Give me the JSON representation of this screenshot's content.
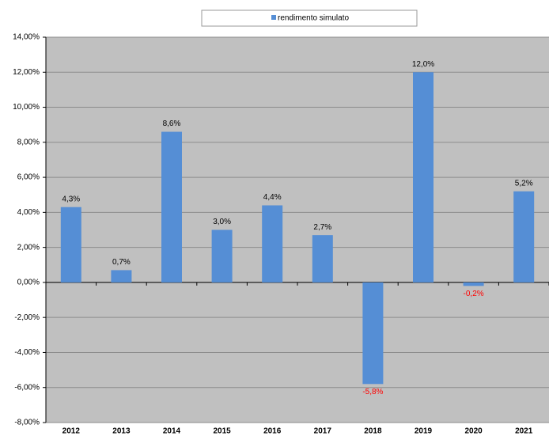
{
  "chart_data": {
    "type": "bar",
    "categories": [
      "2012",
      "2013",
      "2014",
      "2015",
      "2016",
      "2017",
      "2018",
      "2019",
      "2020",
      "2021"
    ],
    "series": [
      {
        "name": "rendimento simulato",
        "color": "#558ed5",
        "values": [
          4.3,
          0.7,
          8.6,
          3.0,
          4.4,
          2.7,
          -5.8,
          12.0,
          -0.2,
          5.2
        ],
        "value_labels": [
          "4,3%",
          "0,7%",
          "8,6%",
          "3,0%",
          "4,4%",
          "2,7%",
          "-5,8%",
          "12,0%",
          "-0,2%",
          "5,2%"
        ]
      }
    ],
    "ylim": [
      -8,
      14
    ],
    "yticks": [
      {
        "value": -8,
        "label": "-8,00%"
      },
      {
        "value": -6,
        "label": "-6,00%"
      },
      {
        "value": -4,
        "label": "-4,00%"
      },
      {
        "value": -2,
        "label": "-2,00%"
      },
      {
        "value": 0,
        "label": "0,00%"
      },
      {
        "value": 2,
        "label": "2,00%"
      },
      {
        "value": 4,
        "label": "4,00%"
      },
      {
        "value": 6,
        "label": "6,00%"
      },
      {
        "value": 8,
        "label": "8,00%"
      },
      {
        "value": 10,
        "label": "10,00%"
      },
      {
        "value": 12,
        "label": "12,00%"
      },
      {
        "value": 14,
        "label": "14,00%"
      }
    ],
    "grid": true,
    "legend": "top",
    "plot_background": "#c0c0c0",
    "label_color": "#000000",
    "negative_label_color": "#ff0000"
  }
}
